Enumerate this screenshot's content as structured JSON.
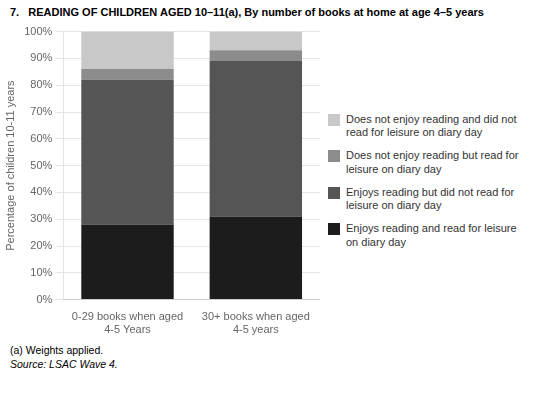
{
  "chart_data": {
    "type": "bar",
    "stacked": true,
    "title": "7.   READING OF CHILDREN AGED 10–11(a), By number of books at home at age 4–5 years",
    "categories": [
      "0-29 books when aged\n4-5 Years",
      "30+ books when aged\n4-5 years"
    ],
    "series": [
      {
        "name": "Enjoys reading and read for leisure\non diary day",
        "color": "#1c1c1c",
        "values": [
          28,
          31
        ]
      },
      {
        "name": "Enjoys reading but did not read for\nleisure on diary day",
        "color": "#555555",
        "values": [
          54,
          58
        ]
      },
      {
        "name": "Does not enjoy reading but read for\nleisure on diary day",
        "color": "#8c8c8c",
        "values": [
          4,
          4
        ]
      },
      {
        "name": "Does not enjoy reading and did not\nread for leisure on diary day",
        "color": "#c8c8c8",
        "values": [
          14,
          7
        ]
      }
    ],
    "ylabel": "Percentage of children 10-11 years",
    "ylim": [
      0,
      100
    ],
    "yticks": [
      {
        "value": 0,
        "label": "0%"
      },
      {
        "value": 10,
        "label": "10%"
      },
      {
        "value": 20,
        "label": "20%"
      },
      {
        "value": 30,
        "label": "30%"
      },
      {
        "value": 40,
        "label": "40%"
      },
      {
        "value": 50,
        "label": "50%"
      },
      {
        "value": 60,
        "label": "60%"
      },
      {
        "value": 70,
        "label": "70%"
      },
      {
        "value": 80,
        "label": "80%"
      },
      {
        "value": 90,
        "label": "90%"
      },
      {
        "value": 100,
        "label": "100%"
      }
    ],
    "grid": true,
    "legend": "right",
    "annotations": [
      "(a) Weights applied.",
      "Source: LSAC Wave 4."
    ]
  }
}
